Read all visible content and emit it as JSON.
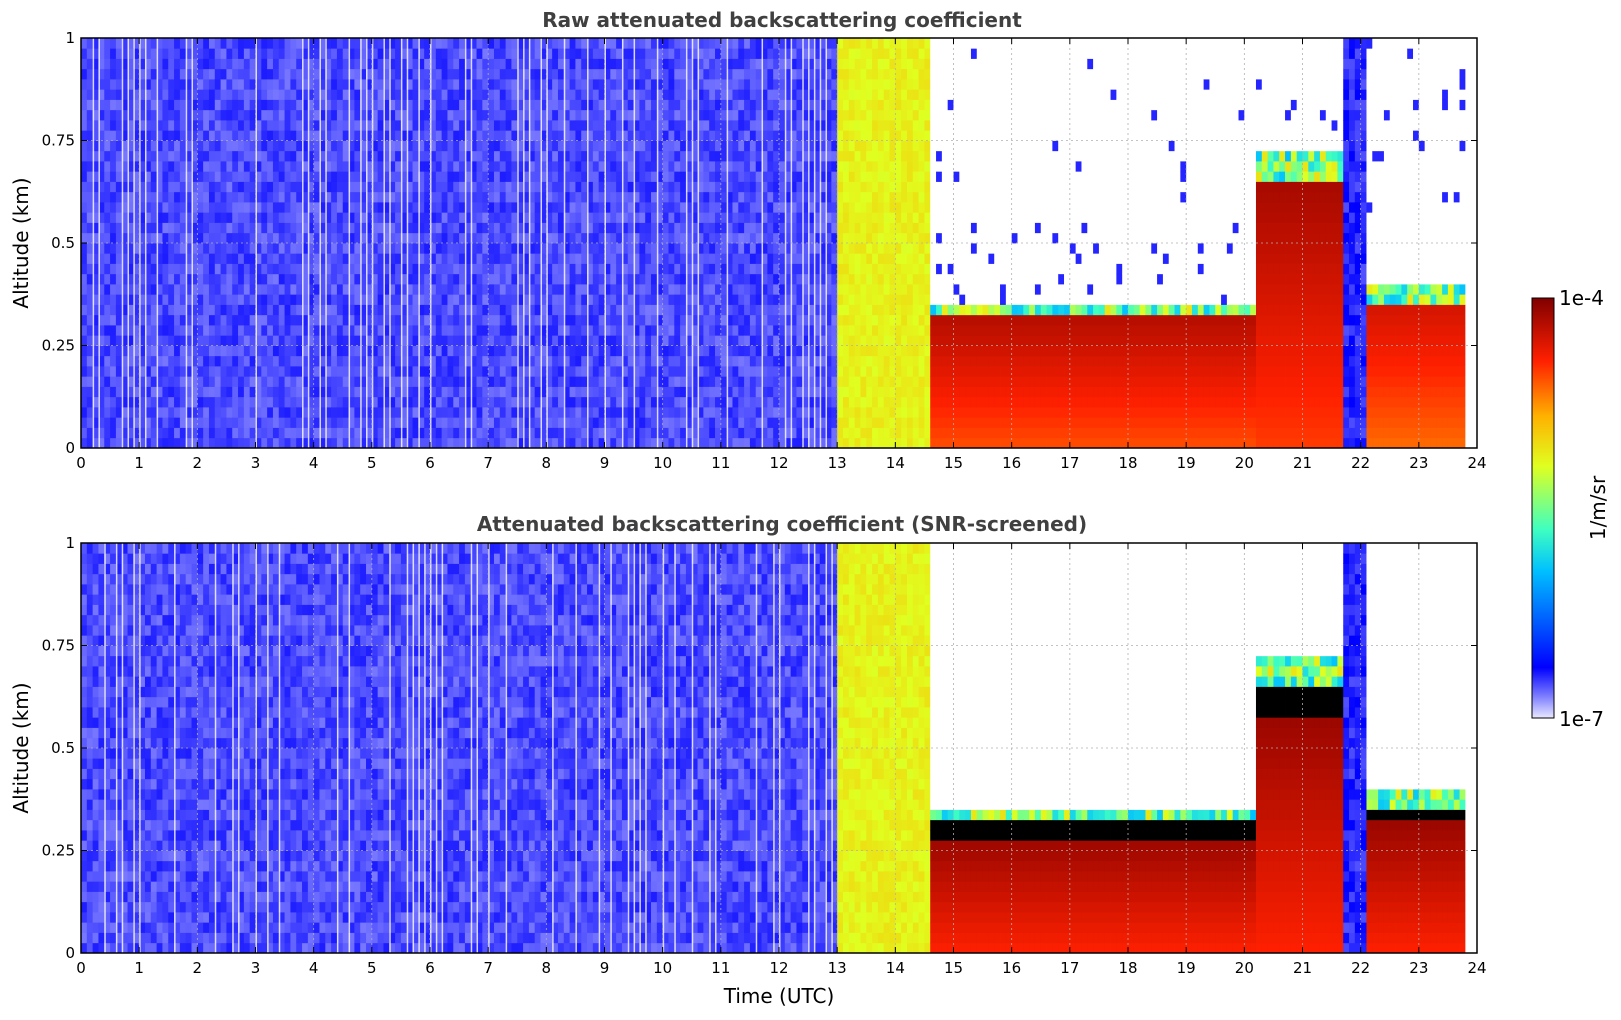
{
  "chart_data": [
    {
      "type": "heatmap",
      "title": "Raw attenuated backscattering coefficient",
      "xlabel": "",
      "ylabel": "Altitude (km)",
      "xlim": [
        0,
        24
      ],
      "ylim": [
        0,
        1
      ],
      "x_ticks": [
        "0",
        "1",
        "2",
        "3",
        "4",
        "5",
        "6",
        "7",
        "8",
        "9",
        "10",
        "11",
        "12",
        "13",
        "14",
        "15",
        "16",
        "17",
        "18",
        "19",
        "20",
        "21",
        "22",
        "23",
        "24"
      ],
      "y_ticks": [
        "0",
        "0.25",
        "0.5",
        "0.75",
        "1"
      ],
      "grid": true,
      "variant": "raw",
      "segments": [
        {
          "t0": 0.0,
          "t1": 13.0,
          "level": 0.08,
          "top": 1.0
        },
        {
          "t0": 13.0,
          "t1": 14.6,
          "level": 0.62,
          "top": 1.0
        },
        {
          "t0": 14.6,
          "t1": 20.2,
          "level": 0.95,
          "top": 0.35
        },
        {
          "t0": 20.2,
          "t1": 21.7,
          "level": 0.97,
          "top": 0.72
        },
        {
          "t0": 21.7,
          "t1": 22.1,
          "level": 0.1,
          "top": 1.0
        },
        {
          "t0": 22.1,
          "t1": 23.8,
          "level": 0.92,
          "top": 0.4
        }
      ]
    },
    {
      "type": "heatmap",
      "title": "Attenuated backscattering coefficient (SNR-screened)",
      "xlabel": "Time (UTC)",
      "ylabel": "Altitude (km)",
      "xlim": [
        0,
        24
      ],
      "ylim": [
        0,
        1
      ],
      "x_ticks": [
        "0",
        "1",
        "2",
        "3",
        "4",
        "5",
        "6",
        "7",
        "8",
        "9",
        "10",
        "11",
        "12",
        "13",
        "14",
        "15",
        "16",
        "17",
        "18",
        "19",
        "20",
        "21",
        "22",
        "23",
        "24"
      ],
      "y_ticks": [
        "0",
        "0.25",
        "0.5",
        "0.75",
        "1"
      ],
      "grid": true,
      "variant": "screened",
      "segments": [
        {
          "t0": 0.0,
          "t1": 13.0,
          "level": 0.08,
          "top": 1.0
        },
        {
          "t0": 13.0,
          "t1": 14.6,
          "level": 0.62,
          "top": 1.0
        },
        {
          "t0": 14.6,
          "t1": 20.2,
          "level": 1.0,
          "top": 0.35
        },
        {
          "t0": 20.2,
          "t1": 21.7,
          "level": 1.0,
          "top": 0.72
        },
        {
          "t0": 21.7,
          "t1": 22.1,
          "level": 0.1,
          "top": 1.0
        },
        {
          "t0": 22.1,
          "t1": 23.8,
          "level": 1.0,
          "top": 0.4
        }
      ]
    }
  ],
  "colorbar": {
    "label": "1/m/sr",
    "max_label": "1e-4",
    "min_label": "1e-7",
    "colormap": "jet"
  }
}
